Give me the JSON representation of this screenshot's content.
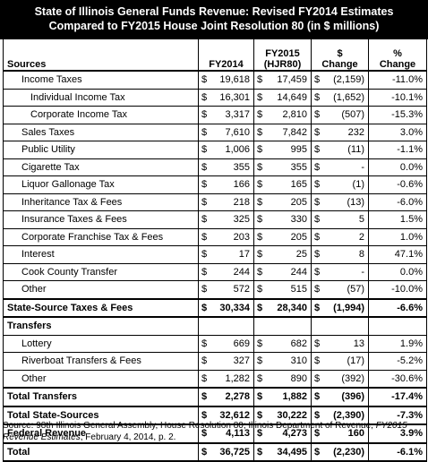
{
  "title": {
    "line1": "State of Illinois General Funds Revenue: Revised FY2014 Estimates",
    "line2": "Compared to FY2015 House Joint Resolution 80 (in $ millions)"
  },
  "columns": {
    "sources": "Sources",
    "fy2014": "FY2014",
    "fy2015_line1": "FY2015",
    "fy2015_line2": "(HJR80)",
    "change_dollar_line1": "$",
    "change_dollar_line2": "Change",
    "change_pct_line1": "%",
    "change_pct_line2": "Change"
  },
  "rows": [
    {
      "label": "Income Taxes",
      "level": 1,
      "fy14": "19,618",
      "fy15": "17,459",
      "chg": "(2,159)",
      "pct": "-11.0%"
    },
    {
      "label": "Individual Income Tax",
      "level": 2,
      "fy14": "16,301",
      "fy15": "14,649",
      "chg": "(1,652)",
      "pct": "-10.1%"
    },
    {
      "label": "Corporate Income Tax",
      "level": 2,
      "fy14": "3,317",
      "fy15": "2,810",
      "chg": "(507)",
      "pct": "-15.3%"
    },
    {
      "label": "Sales Taxes",
      "level": 1,
      "fy14": "7,610",
      "fy15": "7,842",
      "chg": "232",
      "pct": "3.0%"
    },
    {
      "label": "Public Utility",
      "level": 1,
      "fy14": "1,006",
      "fy15": "995",
      "chg": "(11)",
      "pct": "-1.1%"
    },
    {
      "label": "Cigarette Tax",
      "level": 1,
      "fy14": "355",
      "fy15": "355",
      "chg": "-",
      "pct": "0.0%"
    },
    {
      "label": "Liquor Gallonage Tax",
      "level": 1,
      "fy14": "166",
      "fy15": "165",
      "chg": "(1)",
      "pct": "-0.6%"
    },
    {
      "label": "Inheritance Tax & Fees",
      "level": 1,
      "fy14": "218",
      "fy15": "205",
      "chg": "(13)",
      "pct": "-6.0%"
    },
    {
      "label": "Insurance Taxes & Fees",
      "level": 1,
      "fy14": "325",
      "fy15": "330",
      "chg": "5",
      "pct": "1.5%"
    },
    {
      "label": "Corporate Franchise Tax & Fees",
      "level": 1,
      "fy14": "203",
      "fy15": "205",
      "chg": "2",
      "pct": "1.0%"
    },
    {
      "label": "Interest",
      "level": 1,
      "fy14": "17",
      "fy15": "25",
      "chg": "8",
      "pct": "47.1%"
    },
    {
      "label": "Cook County Transfer",
      "level": 1,
      "fy14": "244",
      "fy15": "244",
      "chg": "-",
      "pct": "0.0%"
    },
    {
      "label": "Other",
      "level": 1,
      "fy14": "572",
      "fy15": "515",
      "chg": "(57)",
      "pct": "-10.0%"
    },
    {
      "label": "State-Source Taxes & Fees",
      "level": 0,
      "style": "bold",
      "fy14": "30,334",
      "fy15": "28,340",
      "chg": "(1,994)",
      "pct": "-6.6%"
    },
    {
      "label": "Transfers",
      "level": 0,
      "style": "section",
      "fy14": "",
      "fy15": "",
      "chg": "",
      "pct": ""
    },
    {
      "label": "Lottery",
      "level": 1,
      "fy14": "669",
      "fy15": "682",
      "chg": "13",
      "pct": "1.9%"
    },
    {
      "label": "Riverboat Transfers & Fees",
      "level": 1,
      "fy14": "327",
      "fy15": "310",
      "chg": "(17)",
      "pct": "-5.2%"
    },
    {
      "label": "Other",
      "level": 1,
      "fy14": "1,282",
      "fy15": "890",
      "chg": "(392)",
      "pct": "-30.6%"
    },
    {
      "label": "Total Transfers",
      "level": 0,
      "style": "bold",
      "fy14": "2,278",
      "fy15": "1,882",
      "chg": "(396)",
      "pct": "-17.4%"
    },
    {
      "label": "Total State-Sources",
      "level": 0,
      "style": "bold",
      "fy14": "32,612",
      "fy15": "30,222",
      "chg": "(2,390)",
      "pct": "-7.3%"
    },
    {
      "label": "Federal Revenue",
      "level": 0,
      "style": "bold",
      "fy14": "4,113",
      "fy15": "4,273",
      "chg": "160",
      "pct": "3.9%"
    },
    {
      "label": "Total",
      "level": 0,
      "style": "bold",
      "fy14": "36,725",
      "fy15": "34,495",
      "chg": "(2,230)",
      "pct": "-6.1%"
    }
  ],
  "currency_symbol": "$",
  "source": {
    "prefix": "Source: 98th Illinois General Assembly, House Resolution 80; Illinois Department of Revenue, ",
    "italic": "FY2015 Revenue Estimates",
    "suffix": ", February 4, 2014, p. 2."
  }
}
